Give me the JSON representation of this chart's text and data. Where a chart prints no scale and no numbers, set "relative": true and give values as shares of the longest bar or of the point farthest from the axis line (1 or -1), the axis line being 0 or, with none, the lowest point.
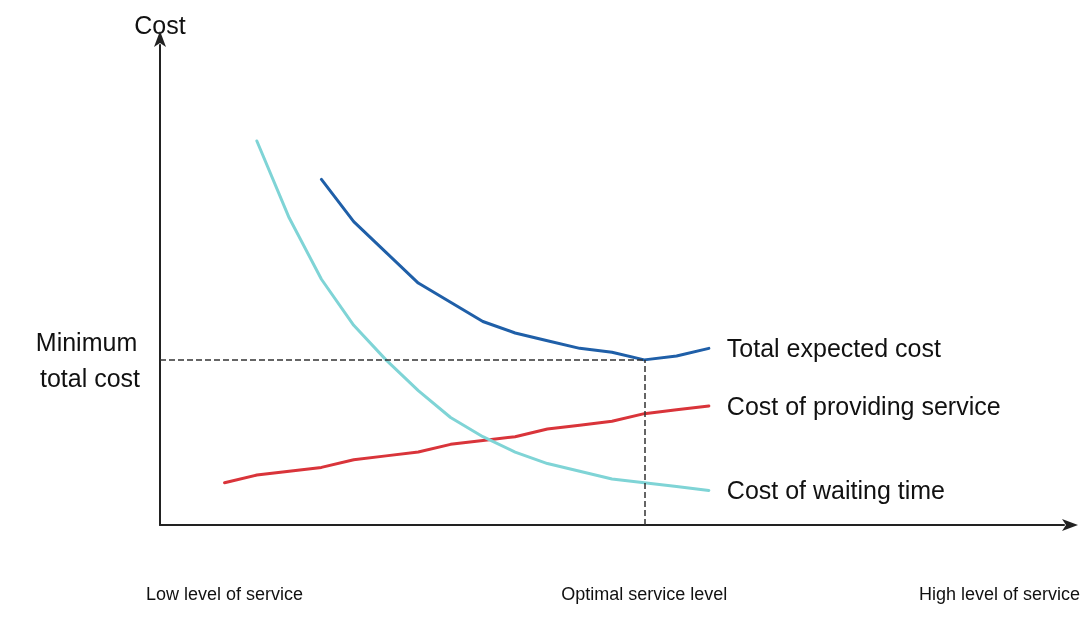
{
  "chart_data": {
    "type": "line",
    "relative": true,
    "ylabel": "Cost",
    "categories": [
      null,
      null,
      "Low level of service",
      null,
      null,
      null,
      null,
      null,
      null,
      null,
      null,
      null,
      null,
      null,
      null,
      "Optimal service level",
      null,
      null,
      null,
      null,
      null,
      null,
      null,
      null,
      null,
      null,
      "High level of service",
      null,
      null
    ],
    "series": [
      {
        "name": "Total expected cost",
        "color": "#1f5fa8",
        "values": [
          null,
          null,
          null,
          null,
          null,
          0.9,
          0.79,
          0.71,
          0.63,
          0.58,
          0.53,
          0.5,
          0.48,
          0.46,
          0.45,
          0.43,
          0.44,
          0.46,
          null,
          null,
          null,
          null,
          null,
          null,
          null,
          null,
          null,
          null,
          null
        ]
      },
      {
        "name": "Cost of providing service",
        "color": "#d9343a",
        "values": [
          null,
          null,
          0.11,
          0.13,
          0.14,
          0.15,
          0.17,
          0.18,
          0.19,
          0.21,
          0.22,
          0.23,
          0.25,
          0.26,
          0.27,
          0.29,
          0.3,
          0.31,
          null,
          null,
          null,
          null,
          null,
          null,
          null,
          null,
          null,
          null,
          null
        ]
      },
      {
        "name": "Cost of waiting time",
        "color": "#7fd4d6",
        "values": [
          null,
          null,
          null,
          1,
          0.8,
          0.64,
          0.52,
          0.43,
          0.35,
          0.28,
          0.23,
          0.19,
          0.16,
          0.14,
          0.12,
          0.11,
          0.1,
          0.09,
          null,
          null,
          null,
          null,
          null,
          null,
          null,
          null,
          null,
          null,
          null
        ]
      }
    ],
    "ref_lines": [
      {
        "axis": "y",
        "value": 0.43,
        "label": "Minimum total cost",
        "line_style": "dashed",
        "color": "#333333"
      },
      {
        "axis": "x",
        "value": "Optimal service level",
        "label": null,
        "line_style": "dashed",
        "color": "#333333"
      }
    ],
    "grid": false,
    "legend": false,
    "marker": "none",
    "line_style": "solid",
    "tick_labels": "x"
  }
}
